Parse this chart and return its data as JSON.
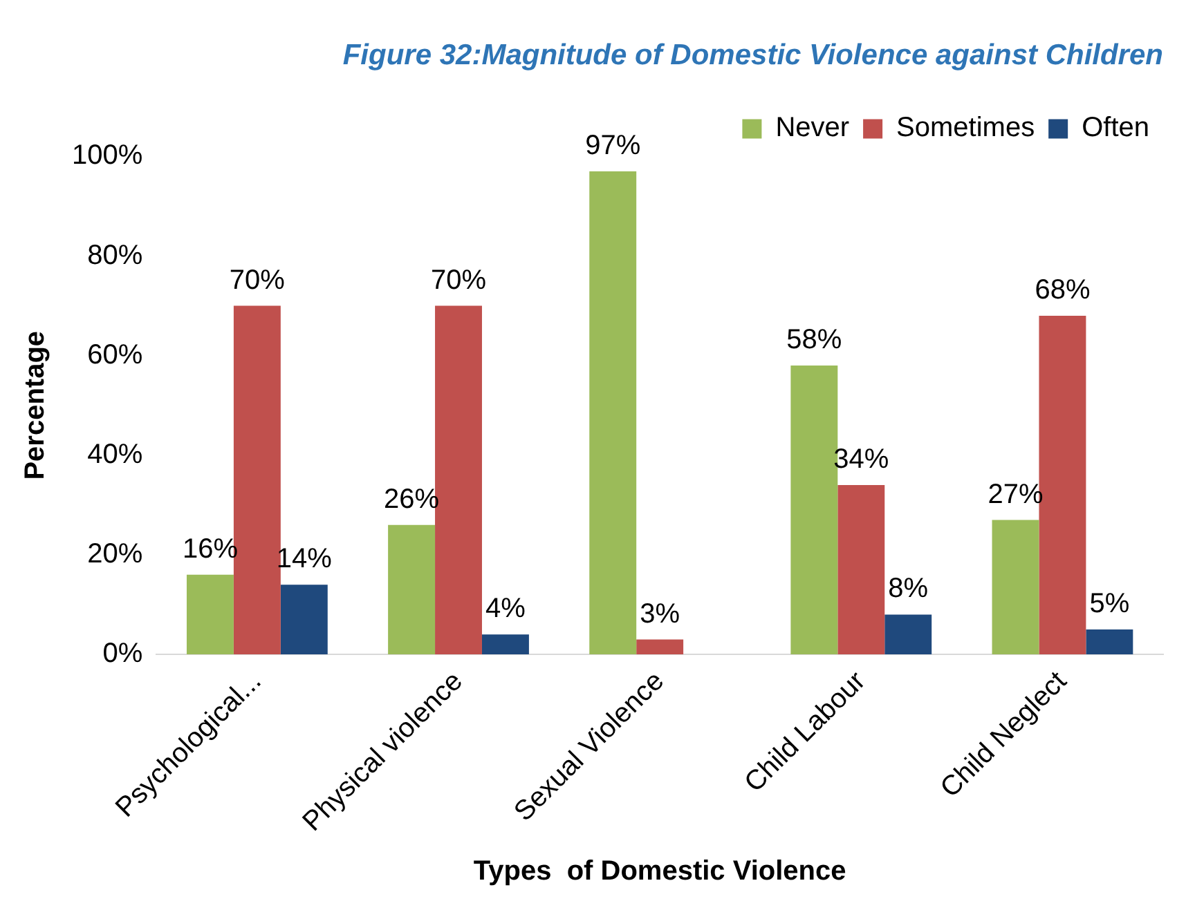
{
  "chart_data": {
    "type": "bar",
    "title": "Figure 32:Magnitude of Domestic Violence against Children",
    "xlabel": "Types  of Domestic Violence",
    "ylabel": "Percentage",
    "categories": [
      "Psychological...",
      "Physical violence",
      "Sexual Violence",
      "Child Labour",
      "Child Neglect"
    ],
    "series": [
      {
        "name": "Never",
        "color": "#9bbb59",
        "values": [
          16,
          26,
          97,
          58,
          27
        ],
        "value_labels": [
          "16%",
          "26%",
          "97%",
          "58%",
          "27%"
        ]
      },
      {
        "name": "Sometimes",
        "color": "#c0504d",
        "values": [
          70,
          70,
          3,
          34,
          68
        ],
        "value_labels": [
          "70%",
          "70%",
          "3%",
          "34%",
          "68%"
        ]
      },
      {
        "name": "Often",
        "color": "#1f497d",
        "values": [
          14,
          4,
          null,
          8,
          5
        ],
        "value_labels": [
          "14%",
          "4%",
          null,
          "8%",
          "5%"
        ]
      }
    ],
    "ylim": [
      0,
      100
    ],
    "yticks": [
      {
        "value": 0,
        "label": "0%"
      },
      {
        "value": 20,
        "label": "20%"
      },
      {
        "value": 40,
        "label": "40%"
      },
      {
        "value": 60,
        "label": "60%"
      },
      {
        "value": 80,
        "label": "80%"
      },
      {
        "value": 100,
        "label": "100%"
      }
    ],
    "grid": false,
    "legend": "top right"
  }
}
